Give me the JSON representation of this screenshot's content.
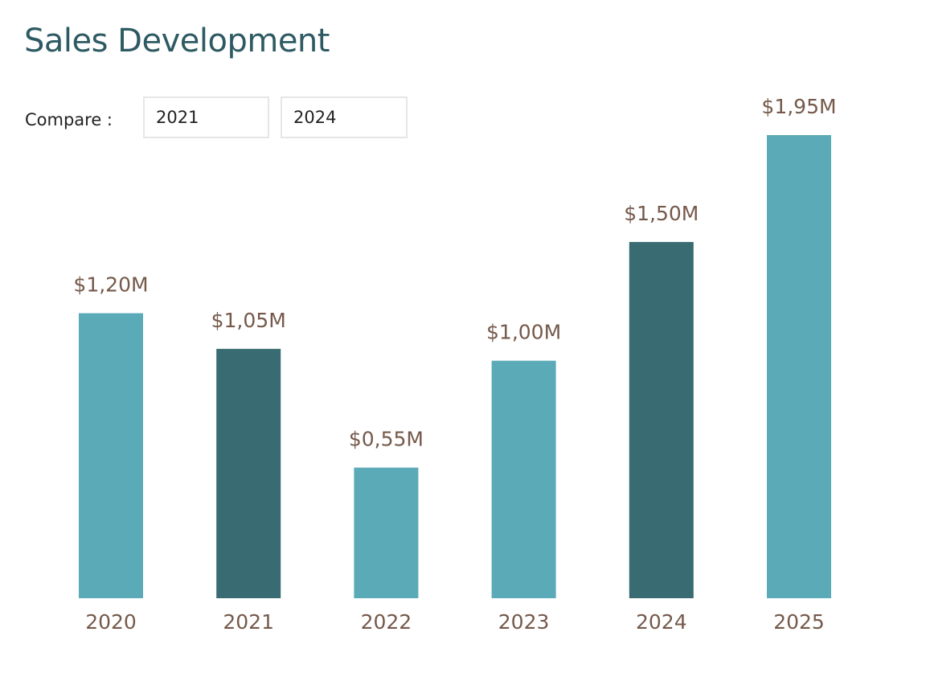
{
  "header": {
    "title": "Sales Development"
  },
  "compare": {
    "label": "Compare :",
    "year_a": "2021",
    "year_b": "2024"
  },
  "colors": {
    "bar_default": "#5aabb7",
    "bar_highlight": "#386b72",
    "label": "#75594a",
    "title": "#2e5a63"
  },
  "chart_data": {
    "type": "bar",
    "title": "Sales Development",
    "xlabel": "",
    "ylabel": "",
    "categories": [
      "2020",
      "2021",
      "2022",
      "2023",
      "2024",
      "2025"
    ],
    "values": [
      1.2,
      1.05,
      0.55,
      1.0,
      1.5,
      1.95
    ],
    "value_labels": [
      "$1,20M",
      "$1,05M",
      "$0,55M",
      "$1,00M",
      "$1,50M",
      "$1,95M"
    ],
    "unit": "$M",
    "highlighted": [
      "2021",
      "2024"
    ],
    "ylim": [
      0,
      1.95
    ],
    "grid": false,
    "legend": "none"
  }
}
